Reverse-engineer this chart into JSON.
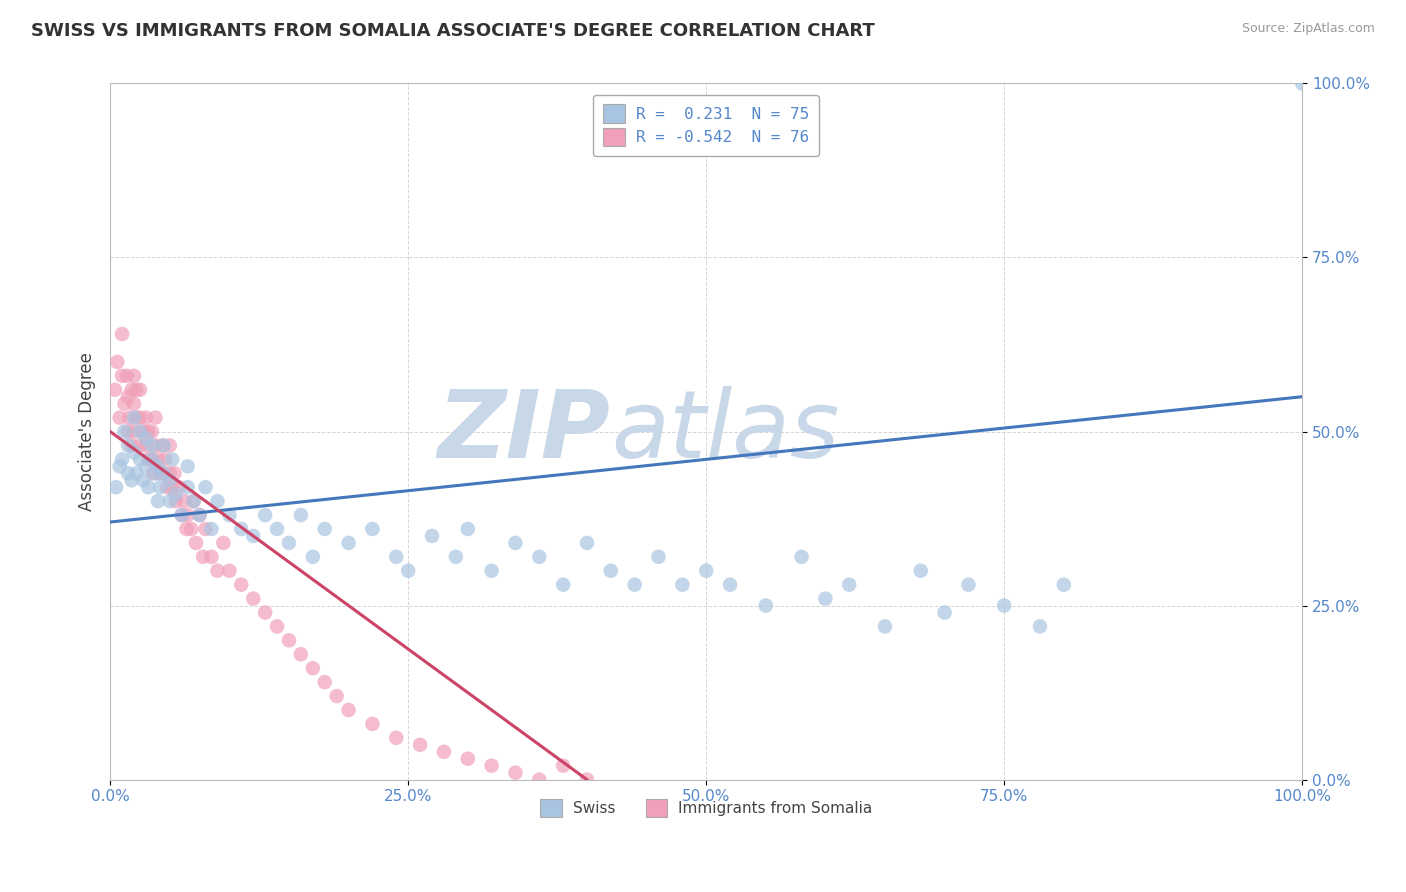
{
  "title": "SWISS VS IMMIGRANTS FROM SOMALIA ASSOCIATE'S DEGREE CORRELATION CHART",
  "source": "Source: ZipAtlas.com",
  "ylabel": "Associate's Degree",
  "watermark_zip": "ZIP",
  "watermark_atlas": "atlas",
  "xlim": [
    0,
    1.0
  ],
  "ylim": [
    0,
    1.0
  ],
  "xticks": [
    0.0,
    0.25,
    0.5,
    0.75,
    1.0
  ],
  "yticks": [
    0.0,
    0.25,
    0.5,
    0.75,
    1.0
  ],
  "xticklabels": [
    "0.0%",
    "25.0%",
    "50.0%",
    "75.0%",
    "100.0%"
  ],
  "yticklabels": [
    "0.0%",
    "25.0%",
    "50.0%",
    "75.0%",
    "100.0%"
  ],
  "swiss_R": 0.231,
  "swiss_N": 75,
  "swiss_slope": 0.18,
  "swiss_intercept": 0.37,
  "somalia_R": -0.542,
  "somalia_N": 76,
  "somalia_slope": -1.25,
  "somalia_intercept": 0.5,
  "swiss_color": "#a8c4e0",
  "somalia_color": "#f0a0b8",
  "swiss_line_color": "#4477bb",
  "somalia_line_color": "#cc4466",
  "swiss_x": [
    0.005,
    0.008,
    0.01,
    0.012,
    0.015,
    0.015,
    0.018,
    0.02,
    0.02,
    0.022,
    0.025,
    0.025,
    0.028,
    0.03,
    0.03,
    0.032,
    0.035,
    0.035,
    0.038,
    0.04,
    0.04,
    0.042,
    0.045,
    0.045,
    0.05,
    0.05,
    0.052,
    0.055,
    0.06,
    0.065,
    0.065,
    0.07,
    0.075,
    0.08,
    0.085,
    0.09,
    0.1,
    0.11,
    0.12,
    0.13,
    0.14,
    0.15,
    0.16,
    0.17,
    0.18,
    0.2,
    0.22,
    0.24,
    0.25,
    0.27,
    0.29,
    0.3,
    0.32,
    0.34,
    0.36,
    0.38,
    0.4,
    0.42,
    0.44,
    0.46,
    0.48,
    0.5,
    0.52,
    0.55,
    0.58,
    0.6,
    0.62,
    0.65,
    0.68,
    0.7,
    0.72,
    0.75,
    0.78,
    0.8,
    1.0
  ],
  "swiss_y": [
    0.42,
    0.45,
    0.46,
    0.5,
    0.44,
    0.48,
    0.43,
    0.47,
    0.52,
    0.44,
    0.46,
    0.5,
    0.43,
    0.45,
    0.49,
    0.42,
    0.46,
    0.48,
    0.44,
    0.4,
    0.45,
    0.42,
    0.44,
    0.48,
    0.4,
    0.43,
    0.46,
    0.41,
    0.38,
    0.42,
    0.45,
    0.4,
    0.38,
    0.42,
    0.36,
    0.4,
    0.38,
    0.36,
    0.35,
    0.38,
    0.36,
    0.34,
    0.38,
    0.32,
    0.36,
    0.34,
    0.36,
    0.32,
    0.3,
    0.35,
    0.32,
    0.36,
    0.3,
    0.34,
    0.32,
    0.28,
    0.34,
    0.3,
    0.28,
    0.32,
    0.28,
    0.3,
    0.28,
    0.25,
    0.32,
    0.26,
    0.28,
    0.22,
    0.3,
    0.24,
    0.28,
    0.25,
    0.22,
    0.28,
    1.0
  ],
  "somalia_x": [
    0.004,
    0.006,
    0.008,
    0.01,
    0.01,
    0.012,
    0.014,
    0.015,
    0.015,
    0.016,
    0.018,
    0.018,
    0.02,
    0.02,
    0.02,
    0.022,
    0.022,
    0.025,
    0.025,
    0.025,
    0.028,
    0.03,
    0.03,
    0.032,
    0.032,
    0.035,
    0.035,
    0.036,
    0.038,
    0.038,
    0.04,
    0.042,
    0.044,
    0.045,
    0.046,
    0.048,
    0.05,
    0.05,
    0.052,
    0.054,
    0.055,
    0.058,
    0.06,
    0.062,
    0.064,
    0.065,
    0.068,
    0.07,
    0.072,
    0.075,
    0.078,
    0.08,
    0.085,
    0.09,
    0.095,
    0.1,
    0.11,
    0.12,
    0.13,
    0.14,
    0.15,
    0.16,
    0.17,
    0.18,
    0.19,
    0.2,
    0.22,
    0.24,
    0.26,
    0.28,
    0.3,
    0.32,
    0.34,
    0.36,
    0.38,
    0.4
  ],
  "somalia_y": [
    0.56,
    0.6,
    0.52,
    0.58,
    0.64,
    0.54,
    0.58,
    0.5,
    0.55,
    0.52,
    0.56,
    0.48,
    0.54,
    0.58,
    0.5,
    0.52,
    0.56,
    0.48,
    0.52,
    0.56,
    0.5,
    0.48,
    0.52,
    0.46,
    0.5,
    0.46,
    0.5,
    0.44,
    0.48,
    0.52,
    0.46,
    0.44,
    0.48,
    0.44,
    0.46,
    0.42,
    0.44,
    0.48,
    0.42,
    0.44,
    0.4,
    0.42,
    0.38,
    0.4,
    0.36,
    0.38,
    0.36,
    0.4,
    0.34,
    0.38,
    0.32,
    0.36,
    0.32,
    0.3,
    0.34,
    0.3,
    0.28,
    0.26,
    0.24,
    0.22,
    0.2,
    0.18,
    0.16,
    0.14,
    0.12,
    0.1,
    0.08,
    0.06,
    0.05,
    0.04,
    0.03,
    0.02,
    0.01,
    0.0,
    0.02,
    0.0
  ],
  "background_color": "#ffffff",
  "grid_color": "#cccccc",
  "tick_color": "#5588cc",
  "title_color": "#333333",
  "source_color": "#999999",
  "watermark_color": "#c8d8e8"
}
